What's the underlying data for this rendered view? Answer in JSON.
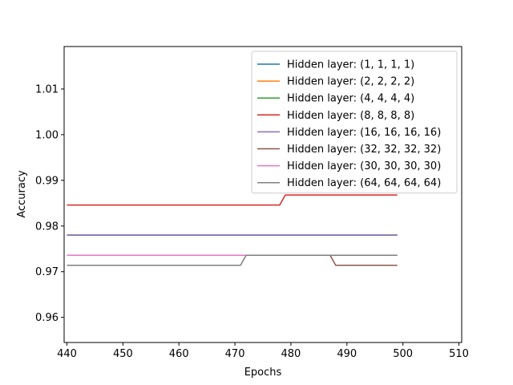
{
  "chart_data": {
    "type": "line",
    "title": "",
    "xlabel": "Epochs",
    "ylabel": "Accuracy",
    "xlim": [
      439.5,
      510.5
    ],
    "ylim": [
      0.9545,
      1.0193
    ],
    "xticks": [
      440,
      450,
      460,
      470,
      480,
      490,
      500,
      510
    ],
    "yticks": [
      0.96,
      0.97,
      0.98,
      0.99,
      1.0,
      1.01
    ],
    "ytick_labels": [
      "0.96",
      "0.97",
      "0.98",
      "0.99",
      "1.00",
      "1.01"
    ],
    "legend_position": "top-right",
    "series": [
      {
        "name": "Hidden layer: (1, 1, 1, 1)",
        "color": "#1f77b4",
        "points": [
          [
            440,
            0.978
          ],
          [
            499,
            0.978
          ]
        ]
      },
      {
        "name": "Hidden layer: (2, 2, 2, 2)",
        "color": "#ff7f0e",
        "points": [
          [
            440,
            0.9736
          ],
          [
            499,
            0.9736
          ]
        ]
      },
      {
        "name": "Hidden layer: (4, 4, 4, 4)",
        "color": "#2ca02c",
        "points": [
          [
            440,
            0.978
          ],
          [
            499,
            0.978
          ]
        ]
      },
      {
        "name": "Hidden layer: (8, 8, 8, 8)",
        "color": "#d62728",
        "points": [
          [
            440,
            0.9846
          ],
          [
            478,
            0.9846
          ],
          [
            479,
            0.9868
          ],
          [
            499,
            0.9868
          ]
        ]
      },
      {
        "name": "Hidden layer: (16, 16, 16, 16)",
        "color": "#9467bd",
        "points": [
          [
            440,
            0.978
          ],
          [
            499,
            0.978
          ]
        ]
      },
      {
        "name": "Hidden layer: (32, 32, 32, 32)",
        "color": "#8c564b",
        "points": [
          [
            440,
            0.9736
          ],
          [
            487,
            0.9736
          ],
          [
            488,
            0.9714
          ],
          [
            499,
            0.9714
          ]
        ]
      },
      {
        "name": "Hidden layer: (30, 30, 30, 30)",
        "color": "#e377c2",
        "points": [
          [
            440,
            0.9736
          ],
          [
            499,
            0.9736
          ]
        ]
      },
      {
        "name": "Hidden layer: (64, 64, 64, 64)",
        "color": "#7f7f7f",
        "points": [
          [
            440,
            0.9714
          ],
          [
            471,
            0.9714
          ],
          [
            472,
            0.9736
          ],
          [
            499,
            0.9736
          ]
        ]
      }
    ]
  }
}
